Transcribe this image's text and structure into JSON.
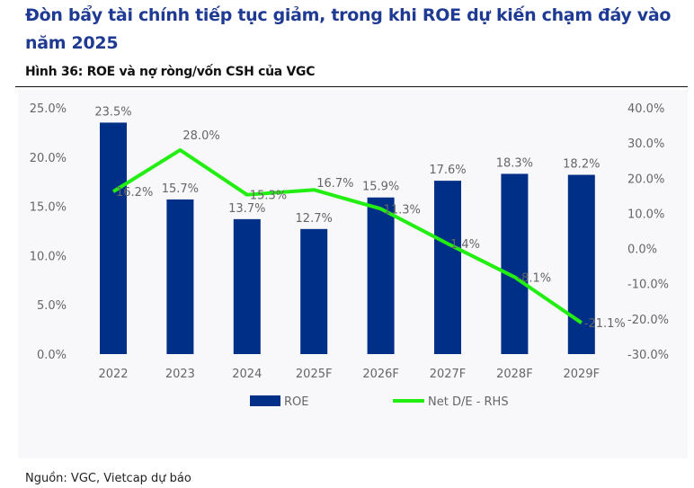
{
  "title": "Đòn bẩy tài chính tiếp tục giảm, trong khi ROE dự kiến chạm đáy vào năm 2025",
  "subtitle": "Hình 36: ROE và nợ ròng/vốn CSH của VGC",
  "source": "Nguồn: VGC, Vietcap dự báo",
  "chart_data": {
    "type": "bar+line",
    "categories": [
      "2022",
      "2023",
      "2024",
      "2025F",
      "2026F",
      "2027F",
      "2028F",
      "2029F"
    ],
    "series": [
      {
        "name": "ROE",
        "type": "bar",
        "axis": "left",
        "color": "#002f87",
        "values": [
          23.5,
          15.7,
          13.7,
          12.7,
          15.9,
          17.6,
          18.3,
          18.2
        ]
      },
      {
        "name": "Net D/E - RHS",
        "type": "line",
        "axis": "right",
        "color": "#22ee11",
        "values": [
          16.2,
          28.0,
          15.3,
          16.7,
          11.3,
          1.4,
          -8.1,
          -21.1
        ]
      }
    ],
    "left_axis": {
      "min": 0,
      "max": 25,
      "step": 5,
      "ticks": [
        "0.0%",
        "5.0%",
        "10.0%",
        "15.0%",
        "20.0%",
        "25.0%"
      ]
    },
    "right_axis": {
      "min": -30,
      "max": 40,
      "step": 10,
      "ticks": [
        "-30.0%",
        "-20.0%",
        "-10.0%",
        "0.0%",
        "10.0%",
        "20.0%",
        "30.0%",
        "40.0%"
      ]
    },
    "legend": "bottom"
  }
}
